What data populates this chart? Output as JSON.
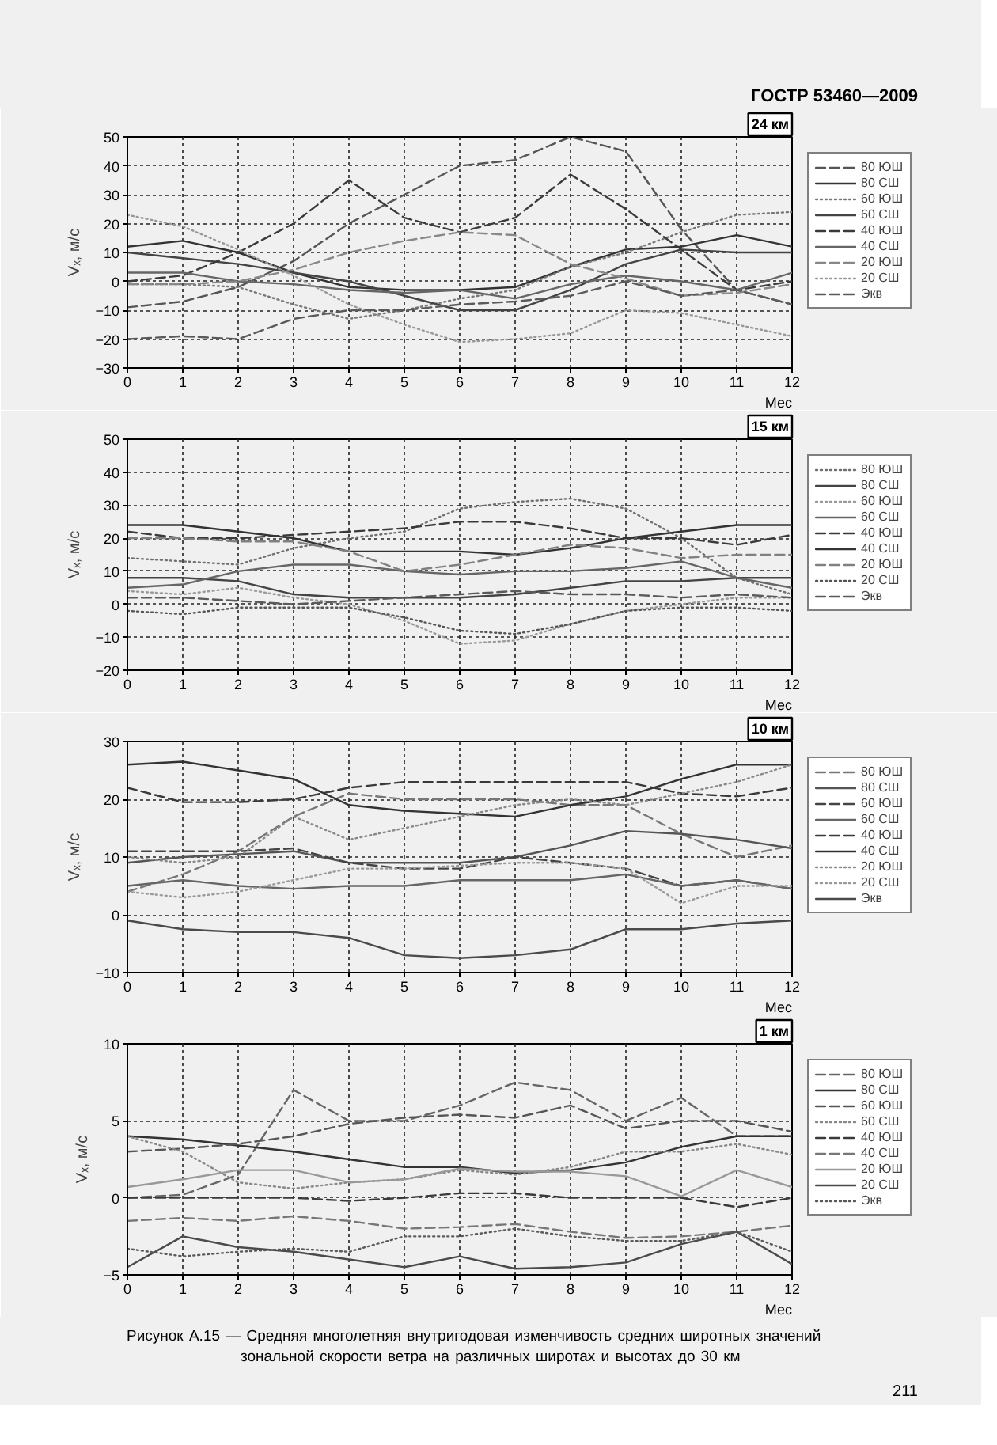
{
  "chart_data": [
    {
      "type": "line",
      "title": "24 км",
      "xlabel": "Мес",
      "ylabel": "Vₓ, м/с",
      "annotations": [
        "ГОСТР 53460—2009"
      ],
      "x": [
        0,
        1,
        2,
        3,
        4,
        5,
        6,
        7,
        8,
        9,
        10,
        11,
        12
      ],
      "xlim": [
        0,
        12
      ],
      "xticks": [
        0,
        1,
        2,
        3,
        4,
        5,
        6,
        7,
        8,
        9,
        10,
        11,
        12
      ],
      "ylim": [
        -30,
        50
      ],
      "yticks": [
        -30,
        -20,
        -10,
        0,
        10,
        20,
        30,
        40,
        50
      ],
      "grid": true,
      "legend": "right",
      "series": [
        {
          "name": "80 ЮШ",
          "color": "#555555",
          "line_style": "dashed",
          "values": [
            -9,
            -7,
            -2,
            7,
            20,
            30,
            40,
            42,
            50,
            45,
            18,
            -3,
            -8
          ]
        },
        {
          "name": "80 СШ",
          "color": "#333333",
          "line_style": "solid",
          "values": [
            12,
            14,
            10,
            3,
            -2,
            -3,
            -3,
            -2,
            5,
            11,
            12,
            16,
            12
          ]
        },
        {
          "name": "60 ЮШ",
          "color": "#777777",
          "line_style": "dotted",
          "values": [
            -1,
            -1,
            -2,
            -8,
            -13,
            -10,
            -6,
            -3,
            5,
            10,
            17,
            23,
            24
          ]
        },
        {
          "name": "60 СШ",
          "color": "#444444",
          "line_style": "solid",
          "values": [
            10,
            8,
            6,
            3,
            0,
            -5,
            -10,
            -10,
            -3,
            6,
            11,
            10,
            10
          ]
        },
        {
          "name": "40 ЮШ",
          "color": "#3a3a3a",
          "line_style": "dashed",
          "values": [
            0,
            2,
            10,
            20,
            35,
            22,
            17,
            22,
            37,
            25,
            11,
            -3,
            0
          ]
        },
        {
          "name": "40 СШ",
          "color": "#666666",
          "line_style": "solid",
          "values": [
            3,
            3,
            0,
            -1,
            -3,
            -4,
            -3,
            -6,
            -1,
            2,
            0,
            -3,
            3
          ]
        },
        {
          "name": "20 ЮШ",
          "color": "#888888",
          "line_style": "dashed",
          "values": [
            -1,
            -1,
            0,
            4,
            10,
            14,
            17,
            16,
            6,
            1,
            -5,
            -4,
            -1
          ]
        },
        {
          "name": "20 СШ",
          "color": "#999999",
          "line_style": "dotted",
          "values": [
            23,
            19,
            11,
            2,
            -8,
            -15,
            -21,
            -20,
            -18,
            -10,
            -11,
            -15,
            -19
          ]
        },
        {
          "name": "Экв",
          "color": "#5a5a5a",
          "line_style": "dashed",
          "values": [
            -20,
            -19,
            -20,
            -13,
            -10,
            -10,
            -8,
            -7,
            -5,
            0,
            -5,
            -3,
            -8
          ]
        }
      ]
    },
    {
      "type": "line",
      "title": "15 км",
      "xlabel": "Мес",
      "ylabel": "Vₓ, м/с",
      "x": [
        0,
        1,
        2,
        3,
        4,
        5,
        6,
        7,
        8,
        9,
        10,
        11,
        12
      ],
      "xlim": [
        0,
        12
      ],
      "xticks": [
        0,
        1,
        2,
        3,
        4,
        5,
        6,
        7,
        8,
        9,
        10,
        11,
        12
      ],
      "ylim": [
        -20,
        50
      ],
      "yticks": [
        -20,
        -10,
        0,
        10,
        20,
        30,
        40,
        50
      ],
      "grid": true,
      "legend": "right",
      "series": [
        {
          "name": "80 ЮШ",
          "color": "#707070",
          "line_style": "dotted",
          "values": [
            14,
            13,
            12,
            17,
            20,
            22,
            29,
            31,
            32,
            29,
            20,
            8,
            3
          ]
        },
        {
          "name": "80 СШ",
          "color": "#444444",
          "line_style": "solid",
          "values": [
            8,
            8,
            7,
            3,
            2,
            2,
            2,
            3,
            5,
            7,
            7,
            8,
            8
          ]
        },
        {
          "name": "60 ЮШ",
          "color": "#999999",
          "line_style": "dotted",
          "values": [
            4,
            3,
            5,
            2,
            0,
            -5,
            -12,
            -11,
            -6,
            -2,
            0,
            2,
            2
          ]
        },
        {
          "name": "60 СШ",
          "color": "#666666",
          "line_style": "solid",
          "values": [
            5,
            6,
            10,
            12,
            12,
            10,
            9,
            10,
            10,
            11,
            13,
            8,
            5
          ]
        },
        {
          "name": "40 ЮШ",
          "color": "#3a3a3a",
          "line_style": "dashed",
          "values": [
            22,
            20,
            20,
            21,
            22,
            23,
            25,
            25,
            23,
            20,
            20,
            18,
            21
          ]
        },
        {
          "name": "40 СШ",
          "color": "#333333",
          "line_style": "solid",
          "values": [
            24,
            24,
            22,
            20,
            16,
            16,
            16,
            15,
            17,
            20,
            22,
            24,
            24
          ]
        },
        {
          "name": "20 ЮШ",
          "color": "#808080",
          "line_style": "dashed",
          "values": [
            20,
            20,
            19,
            19,
            16,
            10,
            12,
            15,
            18,
            17,
            14,
            15,
            15
          ]
        },
        {
          "name": "20 СШ",
          "color": "#555555",
          "line_style": "dotted",
          "values": [
            -2,
            -3,
            -1,
            -1,
            -1,
            -4,
            -8,
            -9,
            -6,
            -2,
            -1,
            -1,
            -2
          ]
        },
        {
          "name": "Экв",
          "color": "#5a5a5a",
          "line_style": "dashed",
          "values": [
            2,
            2,
            1,
            0,
            1,
            2,
            3,
            4,
            3,
            3,
            2,
            3,
            2
          ]
        }
      ]
    },
    {
      "type": "line",
      "title": "10 км",
      "xlabel": "Мес",
      "ylabel": "Vₓ, м/с",
      "x": [
        0,
        1,
        2,
        3,
        4,
        5,
        6,
        7,
        8,
        9,
        10,
        11,
        12
      ],
      "xlim": [
        0,
        12
      ],
      "xticks": [
        0,
        1,
        2,
        3,
        4,
        5,
        6,
        7,
        8,
        9,
        10,
        11,
        12
      ],
      "ylim": [
        -10,
        30
      ],
      "yticks": [
        -10,
        0,
        10,
        20,
        30
      ],
      "grid": true,
      "legend": "right",
      "series": [
        {
          "name": "80 ЮШ",
          "color": "#777777",
          "line_style": "dashed",
          "values": [
            4,
            7,
            11,
            17,
            21,
            20,
            20,
            20,
            19,
            19,
            14,
            10,
            12
          ]
        },
        {
          "name": "80 СШ",
          "color": "#555555",
          "line_style": "solid",
          "values": [
            9,
            10,
            10.5,
            11,
            9,
            9,
            9,
            10,
            12,
            14.5,
            14,
            13,
            11.5
          ]
        },
        {
          "name": "60 ЮШ",
          "color": "#444444",
          "line_style": "dashed",
          "values": [
            11,
            11,
            11,
            11.5,
            9,
            8,
            8,
            10,
            9,
            8,
            5,
            6,
            4.5
          ]
        },
        {
          "name": "60 СШ",
          "color": "#666666",
          "line_style": "solid",
          "values": [
            5,
            6,
            5,
            4.5,
            5,
            5,
            6,
            6,
            6,
            7,
            5,
            6,
            4.5
          ]
        },
        {
          "name": "40 ЮШ",
          "color": "#3a3a3a",
          "line_style": "dashed",
          "values": [
            22,
            19.5,
            19.5,
            20,
            22,
            23,
            23,
            23,
            23,
            23,
            21,
            20.5,
            22
          ]
        },
        {
          "name": "40 СШ",
          "color": "#333333",
          "line_style": "solid",
          "values": [
            26,
            26.5,
            25,
            23.5,
            19,
            18,
            17.5,
            17,
            19,
            20.5,
            23.5,
            26,
            26
          ]
        },
        {
          "name": "20 ЮШ",
          "color": "#888888",
          "line_style": "dotted",
          "values": [
            10,
            9,
            10,
            17,
            13,
            15,
            17,
            19,
            20,
            19,
            21,
            23,
            26
          ]
        },
        {
          "name": "20 СШ",
          "color": "#999999",
          "line_style": "dotted",
          "values": [
            4,
            3,
            4,
            6,
            8,
            8,
            8.5,
            9,
            9,
            8,
            2,
            5,
            5
          ]
        },
        {
          "name": "Экв",
          "color": "#4a4a4a",
          "line_style": "solid",
          "values": [
            -1,
            -2.5,
            -3,
            -3,
            -4,
            -7,
            -7.5,
            -7,
            -6,
            -2.5,
            -2.5,
            -1.5,
            -1
          ]
        }
      ]
    },
    {
      "type": "line",
      "title": "1 км",
      "xlabel": "Мес",
      "ylabel": "Vₓ, м/с",
      "annotations": [
        "Рисунок А.15 — Средняя многолетняя внутригодовая изменчивость средних широтных значений зональной скорости ветра на различных широтах и высотах до 30 км",
        "211"
      ],
      "x": [
        0,
        1,
        2,
        3,
        4,
        5,
        6,
        7,
        8,
        9,
        10,
        11,
        12
      ],
      "xlim": [
        0,
        12
      ],
      "xticks": [
        0,
        1,
        2,
        3,
        4,
        5,
        6,
        7,
        8,
        9,
        10,
        11,
        12
      ],
      "ylim": [
        -5,
        10
      ],
      "yticks": [
        -5,
        0,
        5,
        10
      ],
      "grid": true,
      "legend": "right",
      "series": [
        {
          "name": "80 ЮШ",
          "color": "#666666",
          "line_style": "dashed",
          "values": [
            0,
            0.2,
            1.5,
            7,
            5,
            5,
            6,
            7.5,
            7,
            5,
            6.5,
            4,
            4
          ]
        },
        {
          "name": "80 СШ",
          "color": "#333333",
          "line_style": "solid",
          "values": [
            4,
            3.8,
            3.4,
            3,
            2.5,
            2,
            2,
            1.6,
            1.8,
            2.3,
            3.3,
            4,
            4
          ]
        },
        {
          "name": "60 ЮШ",
          "color": "#555555",
          "line_style": "dashed",
          "values": [
            3,
            3.2,
            3.5,
            4,
            4.8,
            5.2,
            5.4,
            5.2,
            6,
            4.5,
            5,
            5,
            4.3
          ]
        },
        {
          "name": "60 СШ",
          "color": "#888888",
          "line_style": "dotted",
          "values": [
            4,
            3,
            1,
            0.6,
            1,
            1.2,
            1.8,
            1.5,
            2,
            3,
            3,
            3.5,
            2.8
          ]
        },
        {
          "name": "40 ЮШ",
          "color": "#3a3a3a",
          "line_style": "dashed",
          "values": [
            0,
            0,
            0,
            0,
            -0.2,
            0,
            0.3,
            0.3,
            0,
            0,
            0,
            -0.6,
            0
          ]
        },
        {
          "name": "40 СШ",
          "color": "#777777",
          "line_style": "dashed",
          "values": [
            -1.5,
            -1.3,
            -1.5,
            -1.2,
            -1.5,
            -2,
            -1.9,
            -1.7,
            -2.2,
            -2.6,
            -2.5,
            -2.2,
            -1.8
          ]
        },
        {
          "name": "20 ЮШ",
          "color": "#999999",
          "line_style": "solid",
          "values": [
            0.7,
            1.2,
            1.8,
            1.8,
            1,
            1.2,
            1.9,
            1.7,
            1.7,
            1.4,
            0.1,
            1.8,
            0.7
          ]
        },
        {
          "name": "20 СШ",
          "color": "#4a4a4a",
          "line_style": "solid",
          "values": [
            -4.5,
            -2.5,
            -3.2,
            -3.5,
            -4,
            -4.5,
            -3.8,
            -4.6,
            -4.5,
            -4.2,
            -3,
            -2.2,
            -4.3
          ]
        },
        {
          "name": "Экв",
          "color": "#5a5a5a",
          "line_style": "dotted",
          "values": [
            -3.3,
            -3.8,
            -3.5,
            -3.3,
            -3.5,
            -2.5,
            -2.5,
            -2,
            -2.5,
            -2.8,
            -2.8,
            -2.2,
            -3.5
          ]
        }
      ]
    }
  ]
}
